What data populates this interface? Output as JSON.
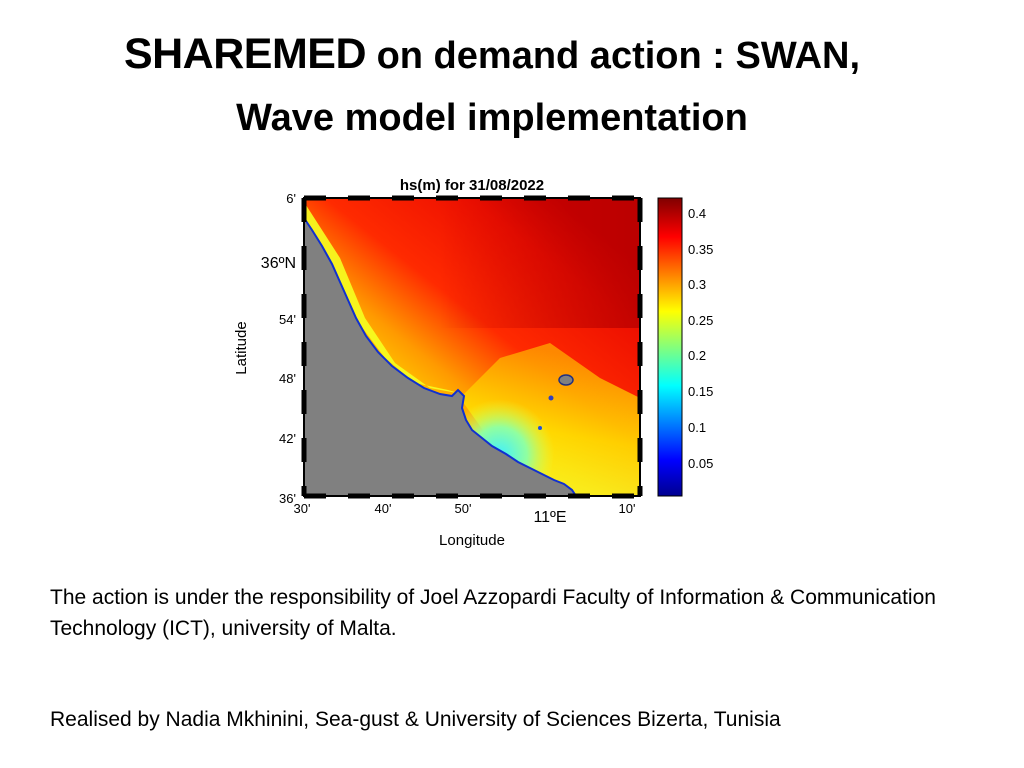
{
  "slide": {
    "title_main": "SHAREMED",
    "title_rest": " on demand action : SWAN,",
    "subtitle": "Wave model implementation",
    "paragraph1": "The action is under the responsibility of Joel Azzopardi Faculty of Information & Communication Technology (ICT), university of Malta.",
    "paragraph2": "Realised by Nadia Mkhinini, Sea-gust & University of Sciences Bizerta, Tunisia"
  },
  "chart_data": {
    "type": "heatmap",
    "title": "hs(m) for 31/08/2022",
    "xlabel": "Longitude",
    "ylabel": "Latitude",
    "x_ticks": [
      "30'",
      "40'",
      "50'",
      "11ºE",
      "10'"
    ],
    "y_ticks": [
      "6'",
      "36ºN",
      "54'",
      "48'",
      "42'",
      "36'"
    ],
    "colorbar_ticks": [
      "0.4",
      "0.35",
      "0.3",
      "0.25",
      "0.2",
      "0.15",
      "0.1",
      "0.05"
    ],
    "colorbar_range": [
      0,
      0.43
    ],
    "colormap": "jet",
    "land_color": "#808080"
  }
}
